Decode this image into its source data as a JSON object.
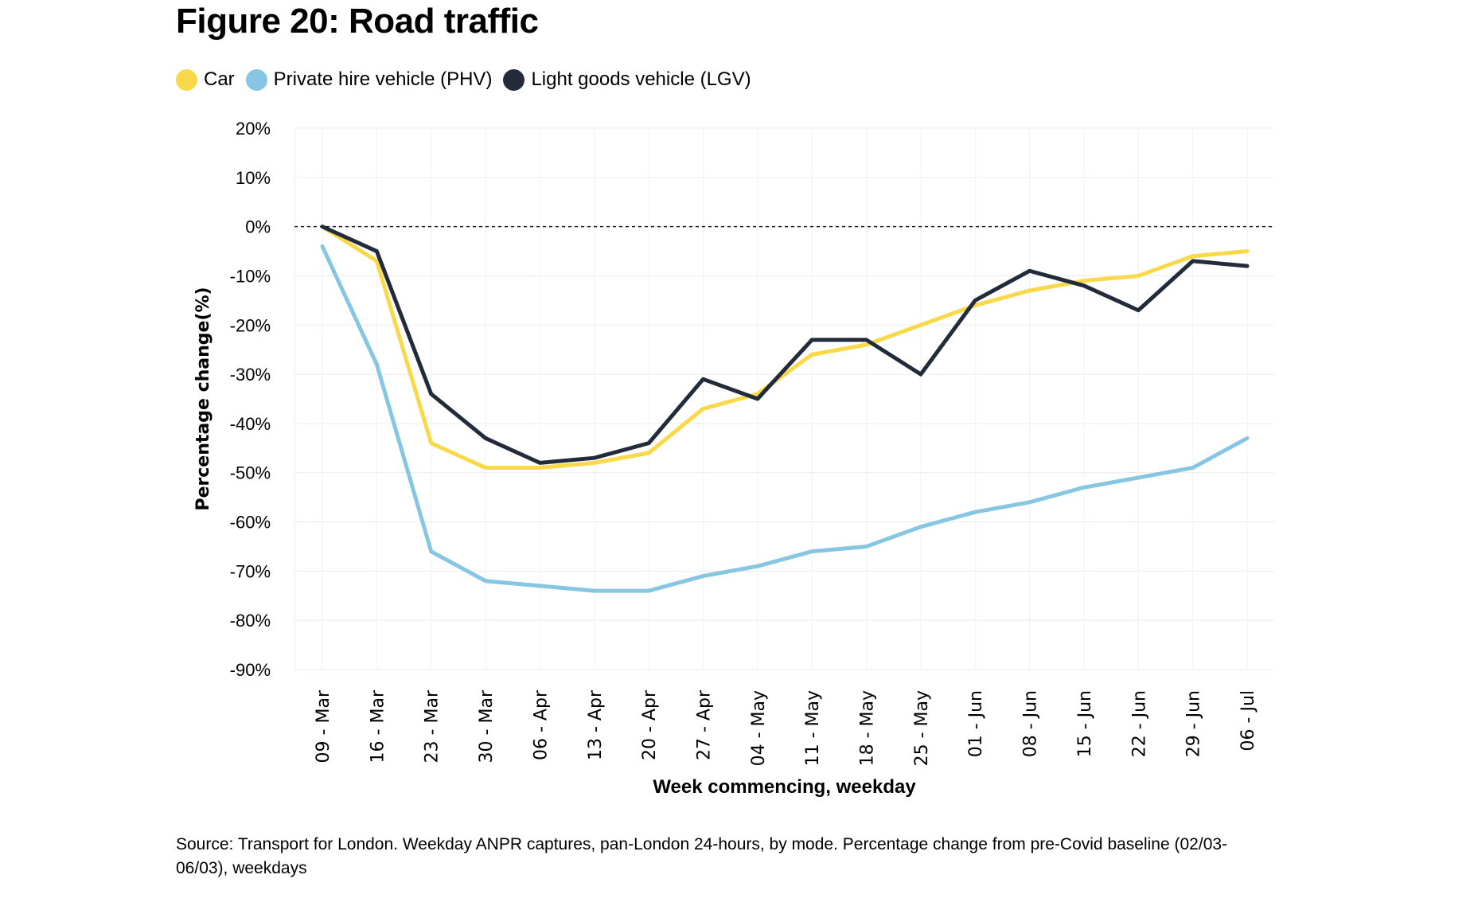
{
  "chart_data": {
    "type": "line",
    "title": "Figure 20: Road traffic",
    "xlabel": "Week commencing, weekday",
    "ylabel": "Percentage change(%)",
    "categories": [
      "09 - Mar",
      "16 - Mar",
      "23 - Mar",
      "30 - Mar",
      "06 - Apr",
      "13 - Apr",
      "20 - Apr",
      "27 - Apr",
      "04 - May",
      "11 - May",
      "18 - May",
      "25 - May",
      "01 - Jun",
      "08 - Jun",
      "15 - Jun",
      "22 - Jun",
      "29 - Jun",
      "06 - Jul"
    ],
    "ylim": [
      -90,
      20
    ],
    "yticks": [
      20,
      10,
      0,
      -10,
      -20,
      -30,
      -40,
      -50,
      -60,
      -70,
      -80,
      -90
    ],
    "ytick_labels": [
      "20%",
      "10%",
      "0%",
      "-10%",
      "-20%",
      "-30%",
      "-40%",
      "-50%",
      "-60%",
      "-70%",
      "-80%",
      "-90%"
    ],
    "grid": true,
    "reference_line": {
      "y": 0,
      "style": "dashed"
    },
    "legend_placement": "top-left",
    "series": [
      {
        "name": "Car",
        "color": "#f9d94a",
        "values": [
          0,
          -7,
          -44,
          -49,
          -49,
          -48,
          -46,
          -37,
          -34,
          -26,
          -24,
          -20,
          -16,
          -13,
          -11,
          -10,
          -6,
          -5
        ]
      },
      {
        "name": "Private hire vehicle (PHV)",
        "color": "#86c6e3",
        "values": [
          -4,
          -28,
          -66,
          -72,
          -73,
          -74,
          -74,
          -71,
          -69,
          -66,
          -65,
          -61,
          -58,
          -56,
          -53,
          -51,
          -49,
          -43
        ]
      },
      {
        "name": "Light goods vehicle (LGV)",
        "color": "#222b3a",
        "values": [
          0,
          -5,
          -34,
          -43,
          -48,
          -47,
          -44,
          -31,
          -35,
          -23,
          -23,
          -30,
          -15,
          -9,
          -12,
          -17,
          -7,
          -8
        ]
      }
    ]
  },
  "source": "Source: Transport for London. Weekday ANPR captures, pan-London 24-hours, by mode. Percentage change from pre-Covid baseline (02/03-06/03), weekdays"
}
